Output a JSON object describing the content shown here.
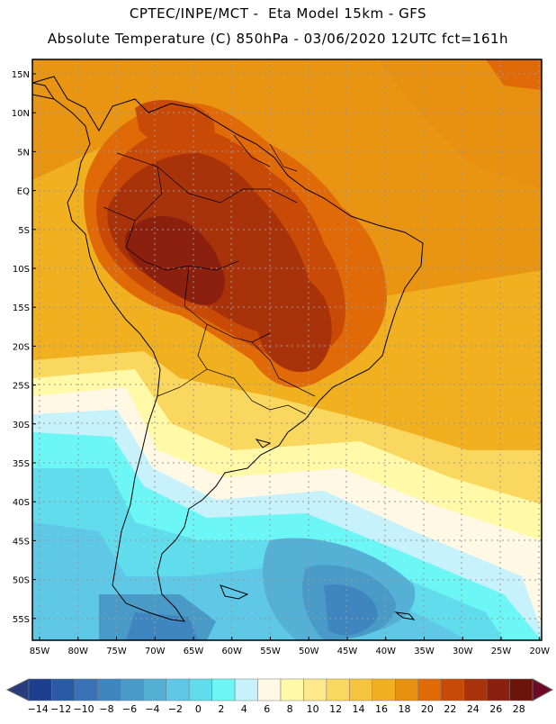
{
  "header": {
    "line1": "CPTEC/INPE/MCT -  Eta Model 15km - GFS",
    "line2": "Absolute Temperature (C) 850hPa - 03/06/2020 12UTC fct=161h"
  },
  "map": {
    "region": "South America",
    "lat_labels": [
      "15N",
      "10N",
      "5N",
      "EQ",
      "5S",
      "10S",
      "15S",
      "20S",
      "25S",
      "30S",
      "35S",
      "40S",
      "45S",
      "50S",
      "55S"
    ],
    "lon_labels": [
      "85W",
      "80W",
      "75W",
      "70W",
      "65W",
      "60W",
      "55W",
      "50W",
      "45W",
      "40W",
      "35W",
      "30W",
      "25W",
      "20W"
    ]
  },
  "colorbar": {
    "units": "C",
    "labels": [
      "-14",
      "-12",
      "-10",
      "-8",
      "-6",
      "-4",
      "-2",
      "0",
      "2",
      "4",
      "6",
      "8",
      "10",
      "12",
      "14",
      "16",
      "18",
      "20",
      "22",
      "24",
      "26",
      "28"
    ],
    "colors": [
      "#1e3f8e",
      "#2a5aa3",
      "#3a72b5",
      "#3f86c0",
      "#4a9ac8",
      "#55b0d6",
      "#5ec8e6",
      "#60dcec",
      "#6df6f6",
      "#c8f2fb",
      "#fff8e4",
      "#fff9a8",
      "#fde88c",
      "#fad860",
      "#f5c540",
      "#f0b020",
      "#e89010",
      "#e06a08",
      "#c84a06",
      "#a8320a",
      "#8c200e",
      "#6a140c"
    ],
    "under_color": "#283c7c",
    "over_color": "#6e0a28"
  }
}
